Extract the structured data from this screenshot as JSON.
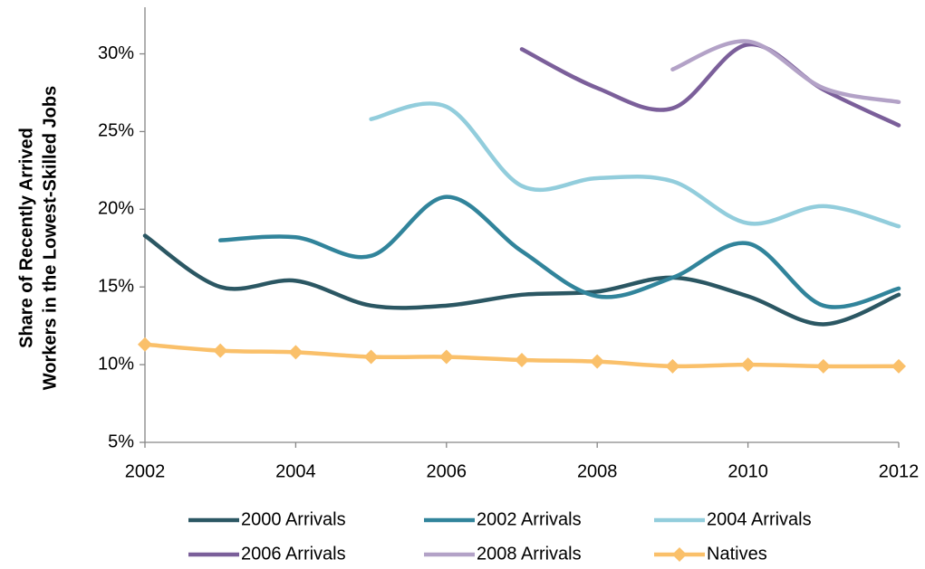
{
  "chart_data": {
    "type": "line",
    "ylabel": [
      "Share of Recently Arrived",
      "Workers in the Lowest-Skilled Jobs"
    ],
    "x": [
      2002,
      2003,
      2004,
      2005,
      2006,
      2007,
      2008,
      2009,
      2010,
      2011,
      2012
    ],
    "xlim": [
      2002,
      2012
    ],
    "xticks": [
      2002,
      2004,
      2006,
      2008,
      2010,
      2012
    ],
    "ylim": [
      5,
      33
    ],
    "yticks": [
      {
        "value": 5,
        "label": "5%"
      },
      {
        "value": 10,
        "label": "10%"
      },
      {
        "value": 15,
        "label": "15%"
      },
      {
        "value": 20,
        "label": "20%"
      },
      {
        "value": 25,
        "label": "25%"
      },
      {
        "value": 30,
        "label": "30%"
      }
    ],
    "grid": false,
    "smooth": true,
    "series": [
      {
        "name": "2000 Arrivals",
        "color": "#2b5763",
        "values": [
          18.3,
          15.0,
          15.4,
          13.8,
          13.8,
          14.5,
          14.7,
          15.6,
          14.4,
          12.6,
          14.5
        ]
      },
      {
        "name": "2002 Arrivals",
        "color": "#31849b",
        "values": [
          null,
          18.0,
          18.2,
          17.0,
          20.8,
          17.3,
          14.4,
          15.6,
          17.8,
          13.8,
          14.9
        ]
      },
      {
        "name": "2004 Arrivals",
        "color": "#92cddc",
        "values": [
          null,
          null,
          null,
          25.8,
          26.6,
          21.5,
          22.0,
          21.8,
          19.1,
          20.2,
          18.9
        ]
      },
      {
        "name": "2006 Arrivals",
        "color": "#7b5f9a",
        "values": [
          null,
          null,
          null,
          null,
          null,
          30.3,
          27.8,
          26.5,
          30.6,
          27.7,
          25.4
        ]
      },
      {
        "name": "2008 Arrivals",
        "color": "#b3a2c7",
        "values": [
          null,
          null,
          null,
          null,
          null,
          null,
          null,
          29.0,
          30.8,
          27.8,
          26.9
        ]
      },
      {
        "name": "Natives",
        "color": "#fac06a",
        "marker": "diamond",
        "values": [
          11.3,
          10.9,
          10.8,
          10.5,
          10.5,
          10.3,
          10.2,
          9.9,
          10.0,
          9.9,
          9.9
        ]
      }
    ]
  }
}
